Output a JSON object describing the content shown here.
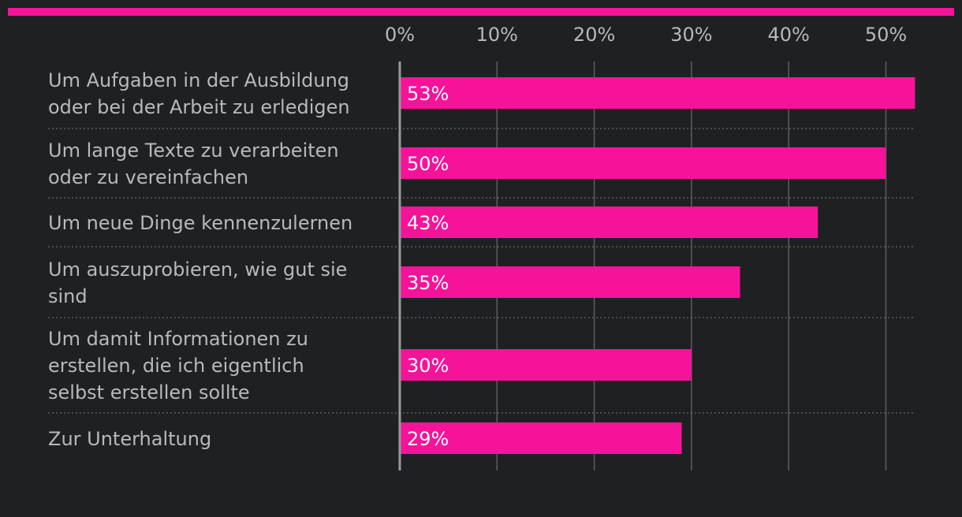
{
  "colors": {
    "background": "#1f2022",
    "accent": "#f5139a",
    "gridline": "#5e5e60",
    "axis": "#9a9a9a",
    "separator": "#6a6a6a",
    "text": "#b9b9b9",
    "value_text": "#ffffff"
  },
  "chart_data": {
    "type": "bar",
    "orientation": "horizontal",
    "xlim": [
      0,
      53
    ],
    "ticks": [
      0,
      10,
      20,
      30,
      40,
      50
    ],
    "tick_labels": [
      "0%",
      "10%",
      "20%",
      "30%",
      "40%",
      "50%"
    ],
    "categories": [
      [
        "Um Aufgaben in der Ausbildung",
        "oder bei der Arbeit zu erledigen"
      ],
      [
        "Um lange Texte zu verarbeiten",
        "oder zu vereinfachen"
      ],
      [
        "Um neue Dinge kennenzulernen"
      ],
      [
        "Um auszuprobieren, wie gut sie",
        "sind"
      ],
      [
        "Um damit Informationen zu",
        "erstellen, die ich eigentlich",
        "selbst erstellen sollte"
      ],
      [
        "Zur Unterhaltung"
      ]
    ],
    "values": [
      53,
      50,
      43,
      35,
      30,
      29
    ],
    "value_labels": [
      "53%",
      "50%",
      "43%",
      "35%",
      "30%",
      "29%"
    ],
    "grid": true
  }
}
